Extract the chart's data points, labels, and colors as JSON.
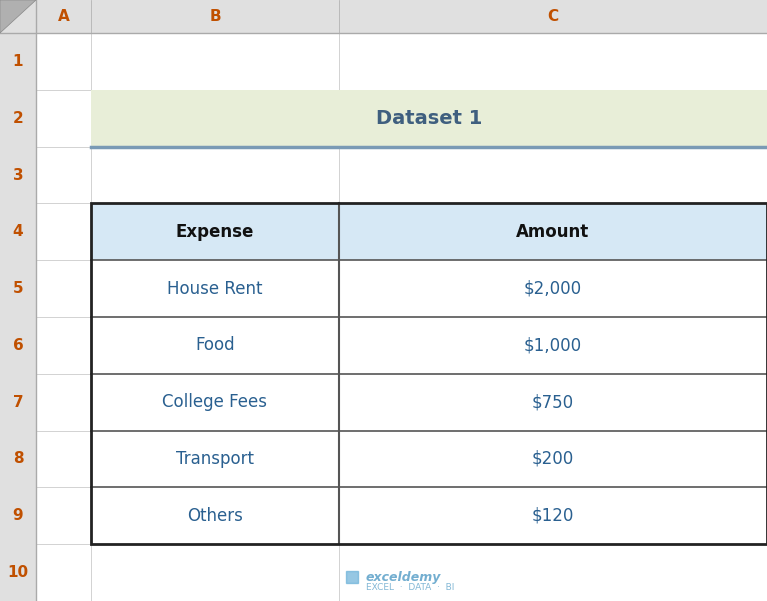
{
  "title": "Dataset 1",
  "title_bg_color": "#e8eed8",
  "title_underline_color": "#7a9ab5",
  "title_text_color": "#3f5f7f",
  "header_row": [
    "Expense",
    "Amount"
  ],
  "header_bg_color": "#d6e8f5",
  "data_rows": [
    [
      "House Rent",
      "$2,000"
    ],
    [
      "Food",
      "$1,000"
    ],
    [
      "College Fees",
      "$750"
    ],
    [
      "Transport",
      "$200"
    ],
    [
      "Others",
      "$120"
    ]
  ],
  "table_border_color": "#222222",
  "cell_border_color": "#555555",
  "data_text_color": "#2a6090",
  "header_text_color": "#111111",
  "bg_color": "#e8e8e8",
  "spreadsheet_bg": "#ffffff",
  "row_label_bg": "#e0e0e0",
  "col_header_bg": "#e0e0e0",
  "col_header_text_color": "#c05000",
  "row_label_text_color": "#c05000",
  "watermark_text": "exceldemy",
  "watermark_sub": "EXCEL  ·  DATA  ·  BI",
  "col_labels": [
    "A",
    "B",
    "C"
  ],
  "row_labels": [
    "1",
    "2",
    "3",
    "4",
    "5",
    "6",
    "7",
    "8",
    "9",
    "10"
  ],
  "corner_color": "#cccccc",
  "grid_line_color": "#c0c0c0"
}
